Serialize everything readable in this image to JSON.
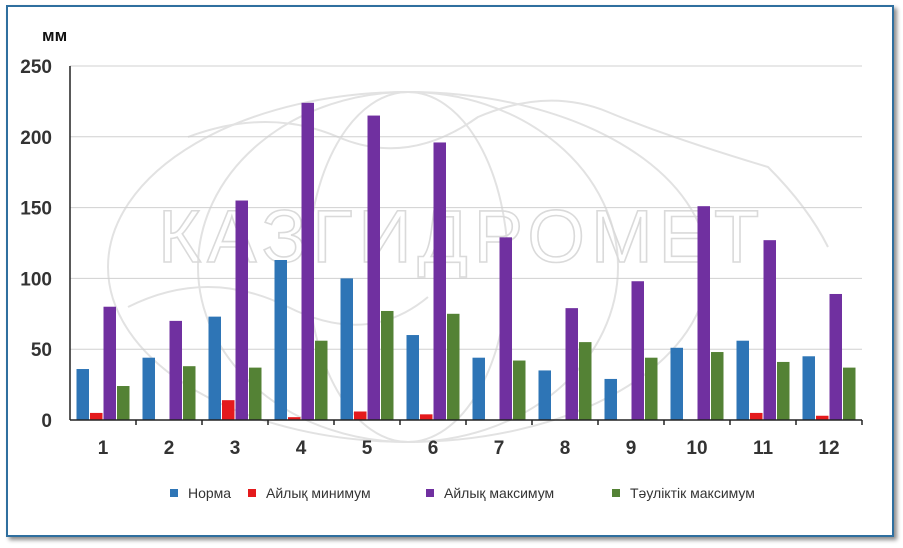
{
  "chart_data": {
    "type": "bar",
    "ylabel": "мм",
    "ylim": [
      0,
      250
    ],
    "yticks": [
      0,
      50,
      100,
      150,
      200,
      250
    ],
    "categories": [
      "1",
      "2",
      "3",
      "4",
      "5",
      "6",
      "7",
      "8",
      "9",
      "10",
      "11",
      "12"
    ],
    "series": [
      {
        "name": "Норма",
        "color": "#2e75b6",
        "values": [
          36,
          44,
          73,
          113,
          100,
          60,
          44,
          35,
          29,
          51,
          56,
          45
        ]
      },
      {
        "name": "Айлық минимум",
        "color": "#e41a1c",
        "values": [
          5,
          0,
          14,
          2,
          6,
          4,
          0,
          0,
          0,
          0,
          5,
          3
        ]
      },
      {
        "name": "Айлық максимум",
        "color": "#7030a0",
        "values": [
          80,
          70,
          155,
          224,
          215,
          196,
          129,
          79,
          98,
          151,
          127,
          89
        ]
      },
      {
        "name": "Тәуліктік максимум",
        "color": "#548235",
        "values": [
          24,
          38,
          37,
          56,
          77,
          75,
          42,
          55,
          44,
          48,
          41,
          37
        ]
      }
    ],
    "grid": true,
    "legend_position": "bottom",
    "watermark": "КАЗГИДРОМЕТ"
  }
}
